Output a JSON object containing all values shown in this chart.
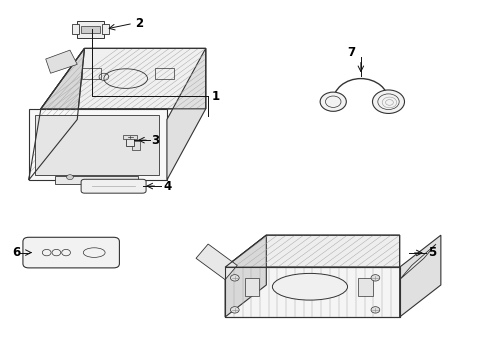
{
  "background_color": "#ffffff",
  "line_color": "#333333",
  "figsize": [
    4.89,
    3.6
  ],
  "dpi": 100,
  "lw": 0.8
}
